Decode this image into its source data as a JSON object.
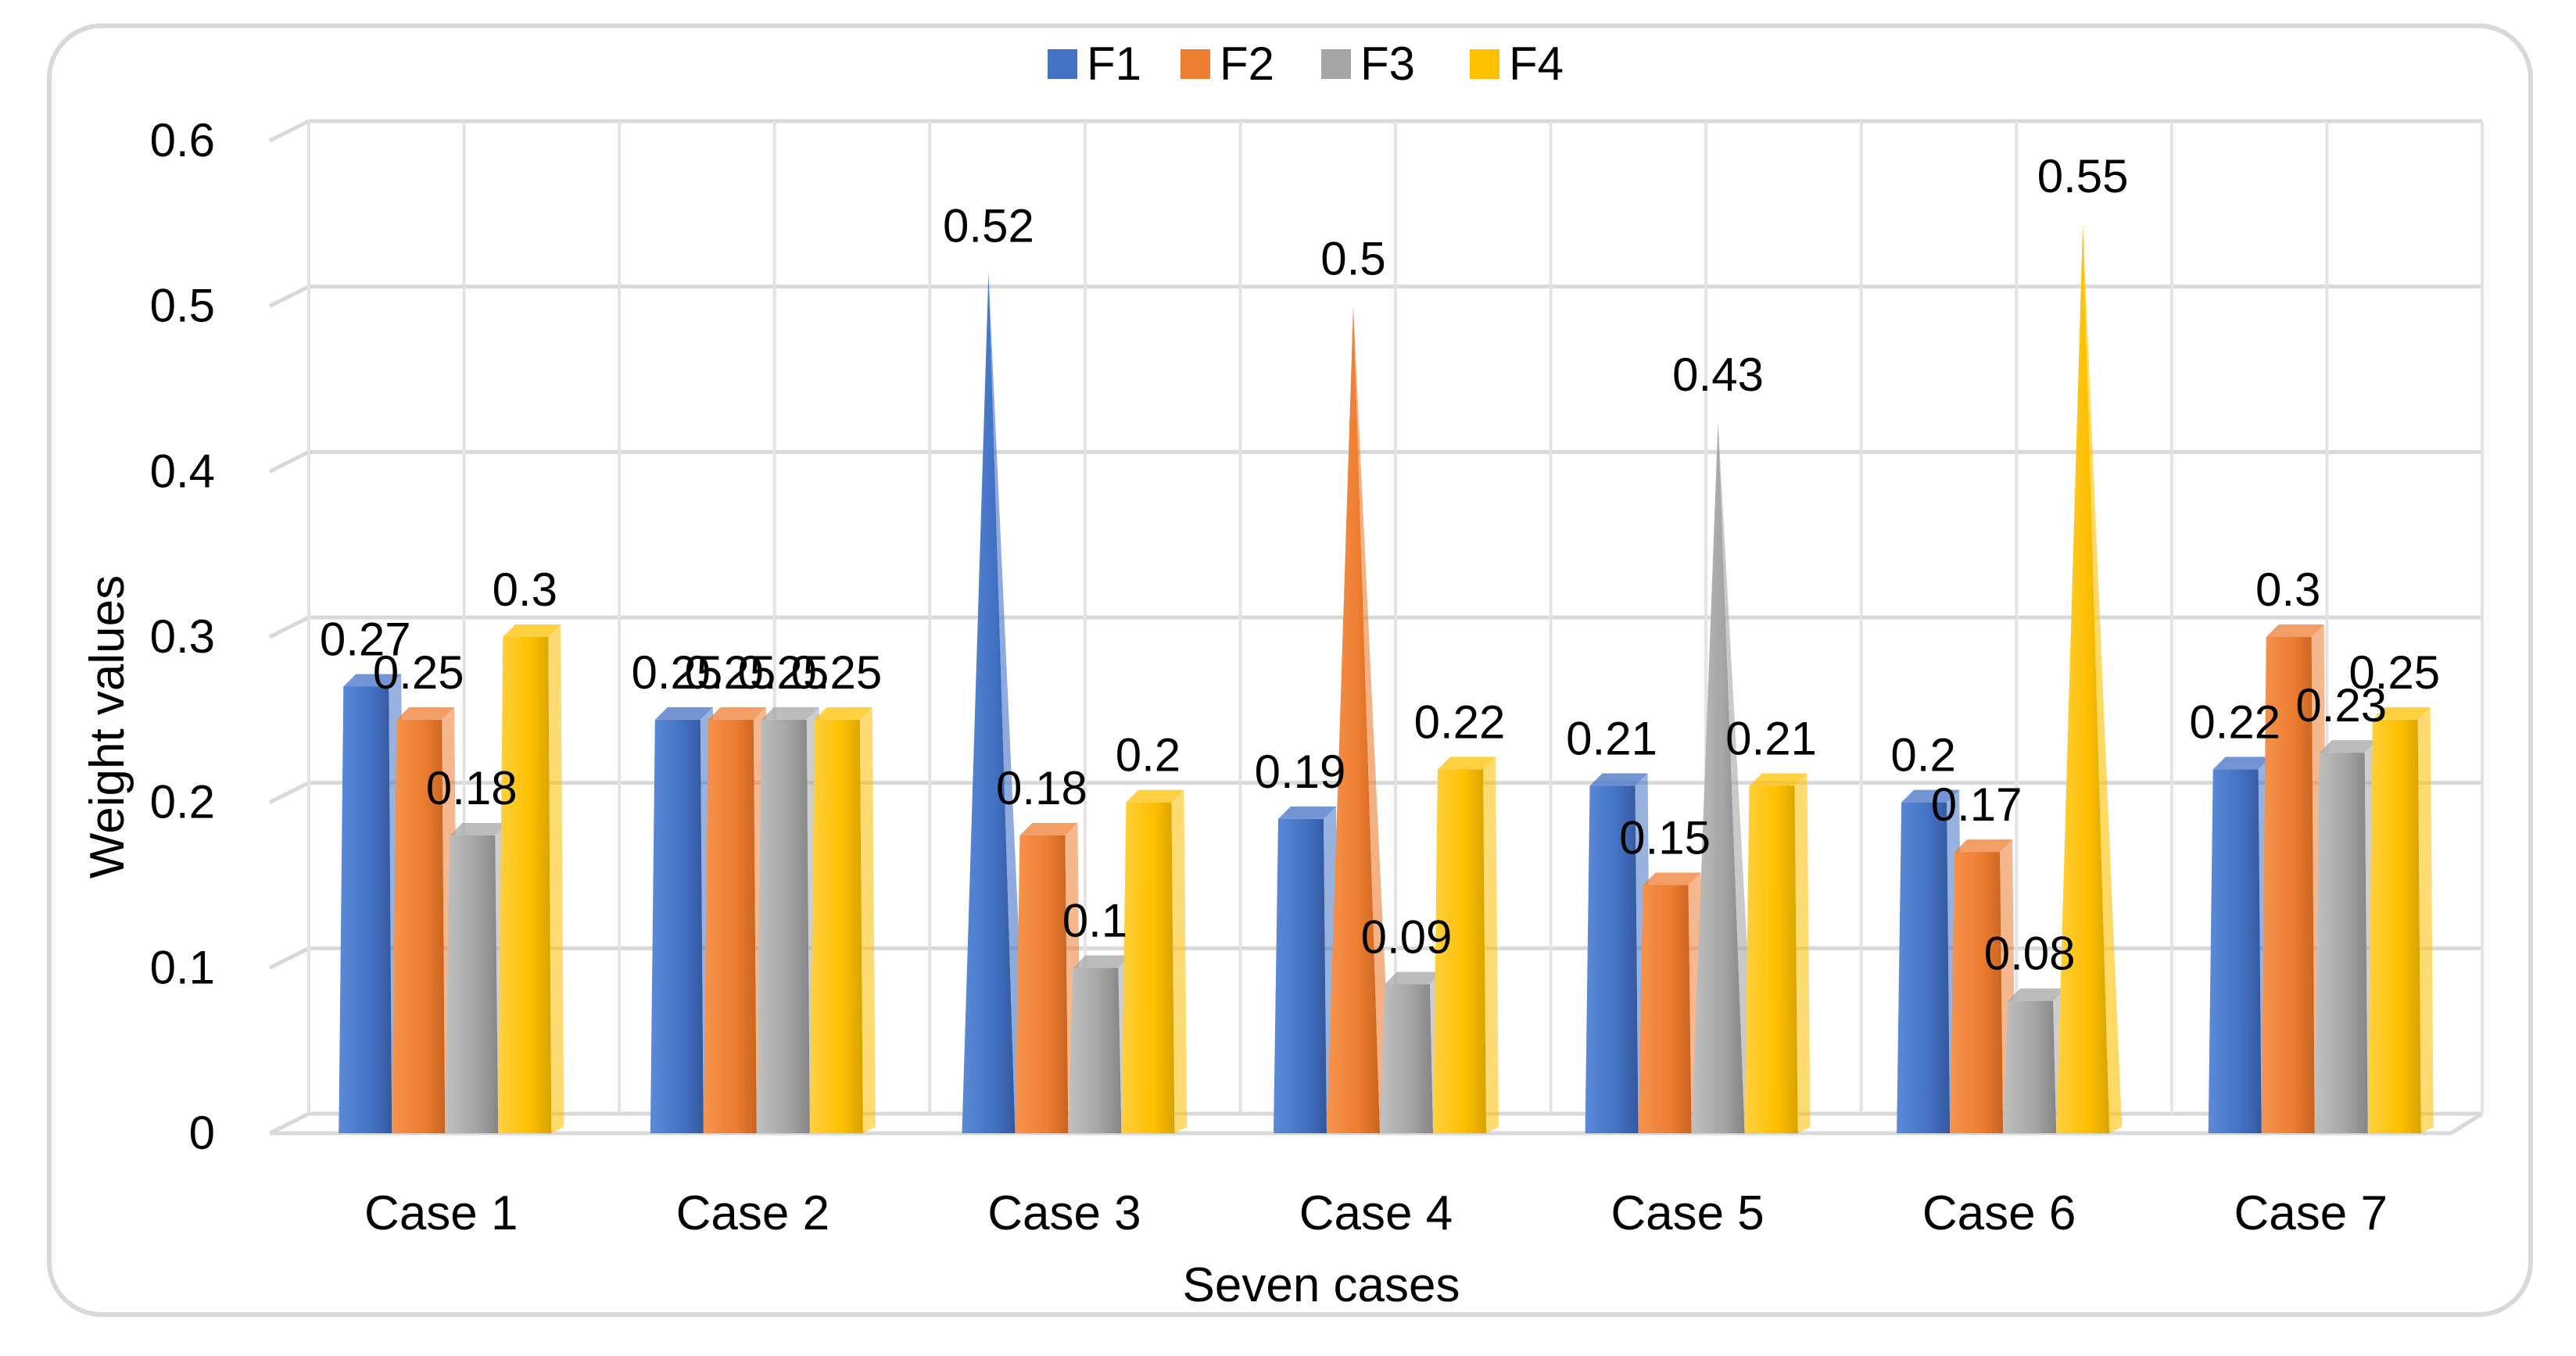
{
  "chart_data": {
    "type": "bar",
    "title": "",
    "xlabel": "Seven cases",
    "ylabel": "Weight values",
    "ylim": [
      0,
      0.6
    ],
    "yticks": [
      "0",
      "0.1",
      "0.2",
      "0.3",
      "0.4",
      "0.5",
      "0.6"
    ],
    "grid": true,
    "legend_position": "top-center",
    "categories": [
      "Case 1",
      "Case 2",
      "Case 3",
      "Case 4",
      "Case 5",
      "Case 6",
      "Case 7"
    ],
    "series": [
      {
        "name": "F1",
        "color": "#4472C4",
        "shape": "bar",
        "values": [
          0.27,
          0.25,
          0.52,
          0.19,
          0.21,
          0.2,
          0.22
        ],
        "labels": [
          "0.27",
          "0.25",
          "0.52",
          "0.19",
          "0.21",
          "0.2",
          "0.22"
        ]
      },
      {
        "name": "F2",
        "color": "#ED7D31",
        "shape": "bar",
        "values": [
          0.25,
          0.25,
          0.18,
          0.5,
          0.15,
          0.17,
          0.3
        ],
        "labels": [
          "0.25",
          "0.25",
          "0.18",
          "0.5",
          "0.15",
          "0.17",
          "0.3"
        ]
      },
      {
        "name": "F3",
        "color": "#A5A5A5",
        "shape": "bar",
        "values": [
          0.18,
          0.25,
          0.1,
          0.09,
          0.43,
          0.08,
          0.23
        ],
        "labels": [
          "0.18",
          "0.25",
          "0.1",
          "0.09",
          "0.43",
          "0.08",
          "0.23"
        ]
      },
      {
        "name": "F4",
        "color": "#FFC000",
        "shape": "bar",
        "values": [
          0.3,
          0.25,
          0.2,
          0.22,
          0.21,
          0.55,
          0.25
        ],
        "labels": [
          "0.3",
          "0.25",
          "0.2",
          "0.22",
          "0.21",
          "0.55",
          "0.25"
        ]
      }
    ],
    "spike_style_points": [
      [
        0,
        2
      ],
      [
        1,
        3
      ],
      [
        2,
        4
      ],
      [
        3,
        5
      ]
    ]
  }
}
